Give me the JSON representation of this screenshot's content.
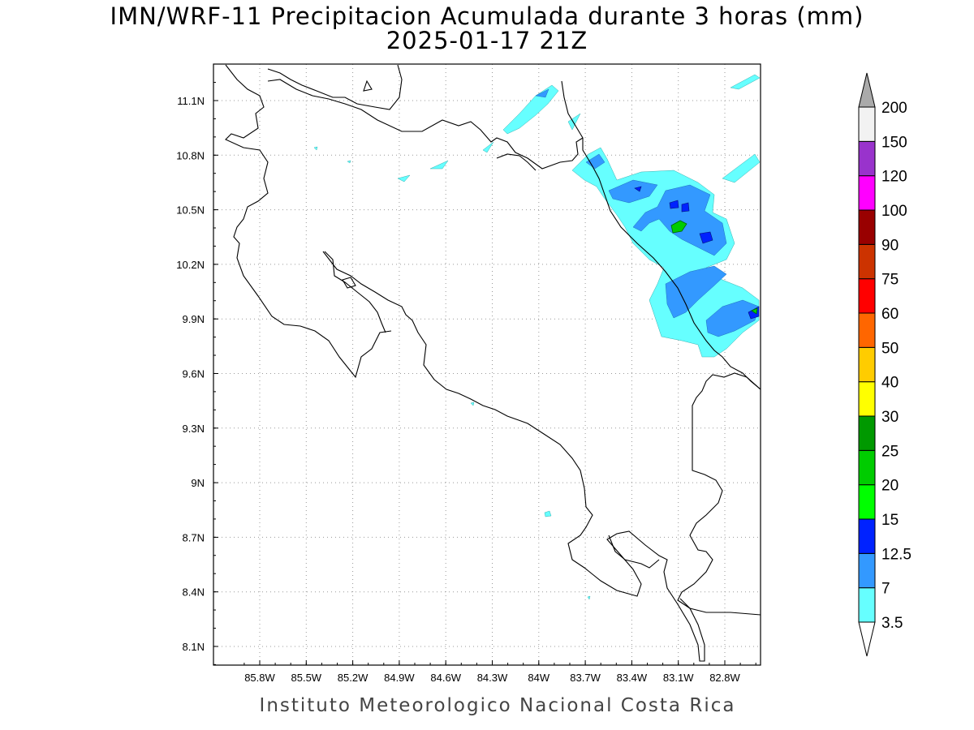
{
  "title": {
    "line1": "IMN/WRF-11 Precipitacion Acumulada durante 3 horas (mm)",
    "line2": "2025-01-17 21Z"
  },
  "footer": "Instituto Meteorologico Nacional Costa Rica",
  "map": {
    "lon_range": [
      -86.0,
      -82.55
    ],
    "lat_range": [
      8.0,
      11.3
    ],
    "lon_ticks": [
      "85.8W",
      "85.5W",
      "85.2W",
      "84.9W",
      "84.6W",
      "84.3W",
      "84W",
      "83.7W",
      "83.4W",
      "83.1W",
      "82.8W"
    ],
    "lat_ticks": [
      "11.1N",
      "10.8N",
      "10.5N",
      "10.2N",
      "9.9N",
      "9.6N",
      "9.3N",
      "9N",
      "8.7N",
      "8.4N",
      "8.1N"
    ],
    "grid": true
  },
  "legend": {
    "labels": [
      "3.5",
      "7",
      "12.5",
      "15",
      "20",
      "25",
      "30",
      "40",
      "50",
      "60",
      "75",
      "90",
      "100",
      "120",
      "150",
      "200"
    ],
    "colors": [
      "#ffffff",
      "#66ffff",
      "#3399ff",
      "#0022ff",
      "#00ff00",
      "#00cc00",
      "#009900",
      "#ffff00",
      "#ffcc00",
      "#ff6600",
      "#ff0000",
      "#cc3300",
      "#990000",
      "#ff00ff",
      "#9933cc",
      "#f2f2f2",
      "#aaaaaa"
    ]
  },
  "rain_colors": {
    "light": "#66ffff",
    "moderate": "#3399ff",
    "heavy": "#0022ff",
    "intense": "#00cc00"
  }
}
